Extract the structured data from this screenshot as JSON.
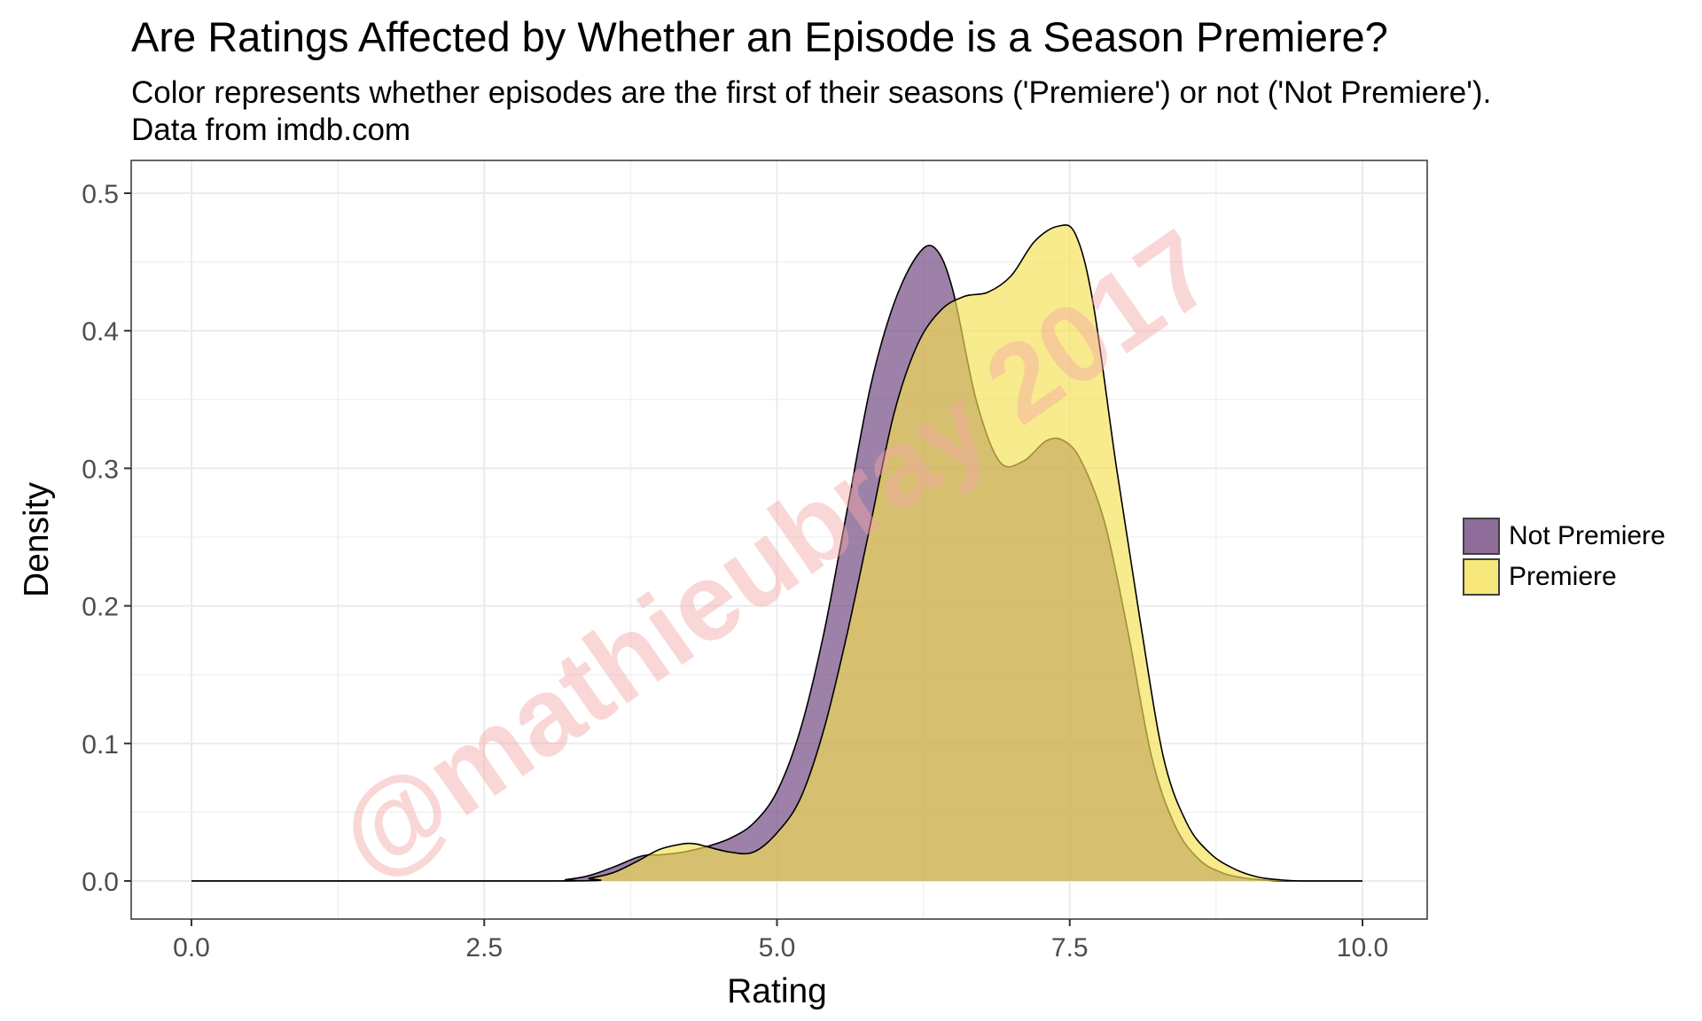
{
  "title": "Are Ratings Affected by Whether an Episode is a Season Premiere?",
  "subtitle_lines": [
    "Color represents whether episodes are the first of their seasons ('Premiere') or not ('Not Premiere').",
    "Data from imdb.com"
  ],
  "watermark": "@mathieubray 2017",
  "colors": {
    "not_premiere": "#6a3d7a",
    "premiere": "#f5e050",
    "watermark": "#f4a7a7",
    "grid": "#ebebeb",
    "panel_border": "#333333"
  },
  "legend_position": "right",
  "chart_data": {
    "type": "area",
    "xlabel": "Rating",
    "ylabel": "Density",
    "xlim": [
      0,
      10
    ],
    "ylim": [
      0,
      0.5
    ],
    "xticks": [
      "0.0",
      "2.5",
      "5.0",
      "7.5",
      "10.0"
    ],
    "yticks": [
      "0.0",
      "0.1",
      "0.2",
      "0.3",
      "0.4",
      "0.5"
    ],
    "grid": true,
    "series": [
      {
        "name": "Not Premiere",
        "color": "#6a3d7a",
        "x": [
          0.0,
          3.0,
          3.2,
          3.4,
          3.6,
          3.8,
          3.9,
          4.0,
          4.2,
          4.4,
          4.6,
          4.8,
          5.0,
          5.2,
          5.4,
          5.6,
          5.8,
          6.0,
          6.2,
          6.35,
          6.5,
          6.7,
          6.9,
          7.1,
          7.3,
          7.45,
          7.6,
          7.8,
          8.0,
          8.2,
          8.4,
          8.6,
          8.8,
          9.0,
          9.2,
          9.4,
          10.0
        ],
        "values": [
          0.0,
          0.0,
          0.001,
          0.004,
          0.01,
          0.017,
          0.019,
          0.019,
          0.021,
          0.025,
          0.031,
          0.042,
          0.065,
          0.11,
          0.18,
          0.27,
          0.36,
          0.42,
          0.455,
          0.46,
          0.43,
          0.35,
          0.305,
          0.305,
          0.32,
          0.32,
          0.305,
          0.26,
          0.18,
          0.09,
          0.04,
          0.016,
          0.006,
          0.002,
          0.0005,
          0.0,
          0.0
        ]
      },
      {
        "name": "Premiere",
        "color": "#f5e050",
        "x": [
          0.0,
          3.2,
          3.4,
          3.6,
          3.8,
          4.0,
          4.2,
          4.3,
          4.4,
          4.6,
          4.8,
          5.0,
          5.2,
          5.4,
          5.6,
          5.8,
          6.0,
          6.2,
          6.4,
          6.6,
          6.8,
          7.0,
          7.2,
          7.4,
          7.55,
          7.7,
          7.9,
          8.1,
          8.3,
          8.5,
          8.7,
          8.9,
          9.1,
          9.3,
          9.5,
          10.0
        ],
        "values": [
          0.0,
          0.0,
          0.002,
          0.006,
          0.014,
          0.023,
          0.027,
          0.027,
          0.025,
          0.021,
          0.021,
          0.035,
          0.06,
          0.11,
          0.18,
          0.26,
          0.34,
          0.39,
          0.415,
          0.425,
          0.428,
          0.44,
          0.465,
          0.476,
          0.47,
          0.42,
          0.3,
          0.19,
          0.09,
          0.042,
          0.02,
          0.009,
          0.003,
          0.0008,
          0.0,
          0.0
        ]
      }
    ]
  }
}
